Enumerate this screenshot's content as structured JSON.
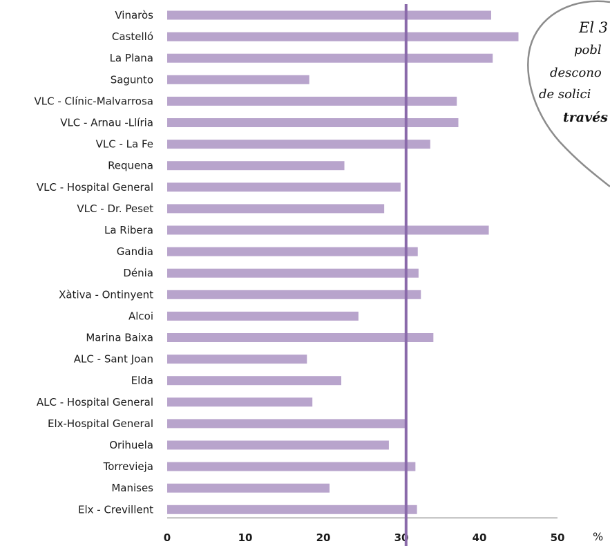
{
  "chart_data": {
    "type": "bar",
    "orientation": "horizontal",
    "categories": [
      "Vinaròs",
      "Castelló",
      "La Plana",
      "Sagunto",
      "VLC - Clínic-Malvarrosa",
      "VLC - Arnau -Llíria",
      "VLC - La Fe",
      "Requena",
      "VLC - Hospital General",
      "VLC - Dr. Peset",
      "La Ribera",
      "Gandia",
      "Dénia",
      "Xàtiva - Ontinyent",
      "Alcoi",
      "Marina Baixa",
      "ALC - Sant Joan",
      "Elda",
      "ALC - Hospital General",
      "Elx-Hospital General",
      "Orihuela",
      "Torrevieja",
      "Manises",
      "Elx - Crevillent"
    ],
    "values": [
      41.5,
      45.0,
      41.7,
      18.2,
      37.1,
      37.3,
      33.7,
      22.7,
      29.9,
      27.8,
      41.2,
      32.1,
      32.2,
      32.5,
      24.5,
      34.1,
      17.9,
      22.3,
      18.6,
      30.5,
      28.4,
      31.8,
      20.8,
      32.0
    ],
    "xlim": [
      0,
      50
    ],
    "xticks": [
      "0",
      "10",
      "20",
      "30",
      "40",
      "50"
    ],
    "x_unit": "%",
    "reference_line": 30.6,
    "grid": false,
    "colors": {
      "bar": "#b8a4cc",
      "reference_line": "#8a6aaa",
      "axis": "#7a7a7a"
    }
  },
  "callout": {
    "line1": "El 3",
    "line2": "pobl",
    "line3": "descono",
    "line4": "de solici",
    "line5": "través"
  }
}
